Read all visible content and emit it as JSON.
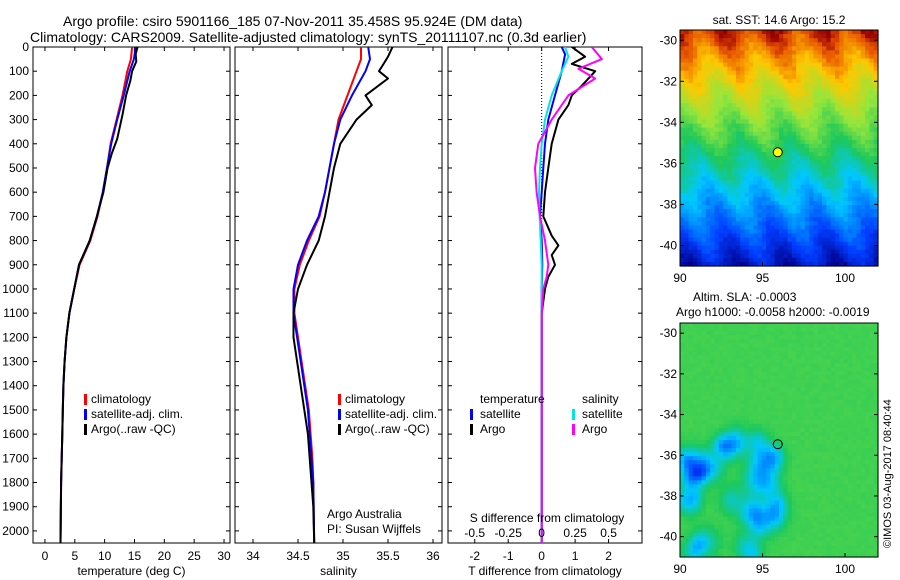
{
  "header": {
    "title_line1": "Argo profile: csiro 5901166_185 07-Nov-2011 35.458S 95.924E (DM data)",
    "title_line2": "Climatology: CARS2009. Satellite-adjusted climatology: synTS_20111107.nc (0.3d earlier)"
  },
  "chart_data": [
    {
      "type": "line",
      "id": "temperature",
      "xlabel": "temperature (deg C)",
      "xlim": [
        -2,
        31
      ],
      "xticks": [
        "0",
        "5",
        "10",
        "15",
        "20",
        "25",
        "30"
      ],
      "ylim": [
        2050,
        0
      ],
      "yticks": [
        "0",
        "100",
        "200",
        "300",
        "400",
        "500",
        "600",
        "700",
        "800",
        "900",
        "1000",
        "1100",
        "1200",
        "1300",
        "1400",
        "1500",
        "1600",
        "1700",
        "1800",
        "1900",
        "2000"
      ],
      "legend": [
        "climatology",
        "satellite-adj. clim.",
        "Argo(..raw -QC)"
      ],
      "series": [
        {
          "name": "climatology",
          "color": "#ff0000",
          "x": [
            14.6,
            14.4,
            13.8,
            13.0,
            12.0,
            11.0,
            10.4,
            9.7,
            8.8,
            7.6,
            5.8,
            4.9,
            4.1,
            3.6,
            3.3,
            3.1,
            3.0,
            2.9,
            2.8,
            2.7,
            2.6
          ],
          "y": [
            0,
            50,
            100,
            200,
            300,
            400,
            500,
            600,
            700,
            800,
            900,
            1000,
            1100,
            1200,
            1300,
            1400,
            1500,
            1600,
            1700,
            1800,
            2050
          ]
        },
        {
          "name": "satellite-adj. clim.",
          "color": "#0000ff",
          "x": [
            15.2,
            14.9,
            14.2,
            13.2,
            12.1,
            11.1,
            10.4,
            9.7,
            8.7,
            7.5,
            5.7,
            4.9,
            4.1,
            3.6,
            3.3,
            3.1,
            3.0,
            2.9,
            2.8,
            2.7,
            2.6
          ],
          "y": [
            0,
            50,
            100,
            200,
            300,
            400,
            500,
            600,
            700,
            800,
            900,
            1000,
            1100,
            1200,
            1300,
            1400,
            1500,
            1600,
            1700,
            1800,
            2050
          ]
        },
        {
          "name": "Argo(..raw -QC)",
          "color": "#000000",
          "x": [
            15.5,
            15.2,
            15.3,
            14.6,
            14.3,
            13.6,
            13.0,
            12.1,
            11.2,
            10.5,
            9.8,
            8.7,
            7.5,
            5.7,
            4.9,
            4.1,
            3.6,
            3.3,
            3.1,
            3.0,
            2.9,
            2.8,
            2.7,
            2.6
          ],
          "y": [
            0,
            30,
            60,
            100,
            140,
            200,
            280,
            380,
            440,
            500,
            600,
            700,
            800,
            900,
            1000,
            1100,
            1200,
            1300,
            1400,
            1500,
            1600,
            1700,
            1800,
            2050
          ]
        }
      ]
    },
    {
      "type": "line",
      "id": "salinity",
      "xlabel": "salinity",
      "xlim": [
        33.8,
        36.1
      ],
      "xticks": [
        "34",
        "34.5",
        "35",
        "35.5",
        "36"
      ],
      "ylim": [
        2050,
        0
      ],
      "legend": [
        "climatology",
        "satellite-adj. clim.",
        "Argo(..raw -QC)"
      ],
      "annotation": [
        "Argo Australia",
        "PI: Susan Wijffels"
      ],
      "series": [
        {
          "name": "climatology",
          "color": "#ff0000",
          "x": [
            35.2,
            35.2,
            35.15,
            35.05,
            34.95,
            34.9,
            34.85,
            34.8,
            34.74,
            34.62,
            34.52,
            34.46,
            34.46,
            34.5,
            34.54,
            34.58,
            34.62,
            34.64,
            34.66,
            34.67,
            34.68
          ],
          "y": [
            0,
            50,
            100,
            200,
            300,
            400,
            500,
            600,
            700,
            800,
            900,
            1000,
            1100,
            1200,
            1300,
            1400,
            1500,
            1600,
            1700,
            1800,
            2050
          ]
        },
        {
          "name": "satellite-adj. clim.",
          "color": "#0000ff",
          "x": [
            35.28,
            35.3,
            35.25,
            35.1,
            34.97,
            34.9,
            34.85,
            34.8,
            34.73,
            34.6,
            34.5,
            34.45,
            34.45,
            34.49,
            34.53,
            34.57,
            34.61,
            34.63,
            34.65,
            34.67,
            34.68
          ],
          "y": [
            0,
            50,
            100,
            200,
            300,
            400,
            500,
            600,
            700,
            800,
            900,
            1000,
            1100,
            1200,
            1300,
            1400,
            1500,
            1600,
            1700,
            1800,
            2050
          ]
        },
        {
          "name": "Argo(..raw -QC)",
          "color": "#000000",
          "x": [
            35.55,
            35.5,
            35.4,
            35.5,
            35.25,
            35.32,
            35.15,
            34.97,
            34.9,
            34.85,
            34.8,
            34.73,
            34.6,
            34.5,
            34.45,
            34.45,
            34.49,
            34.53,
            34.57,
            34.61,
            34.63,
            34.65,
            34.67,
            34.68
          ],
          "y": [
            0,
            40,
            100,
            130,
            200,
            240,
            300,
            400,
            500,
            600,
            700,
            800,
            900,
            1000,
            1100,
            1200,
            1300,
            1400,
            1500,
            1600,
            1700,
            1800,
            1900,
            2050
          ]
        }
      ]
    },
    {
      "type": "line",
      "id": "difference",
      "title": "S difference from climatology",
      "xlabel": "T difference from climatology",
      "xlim": [
        -2.8,
        3.0
      ],
      "xticks": [
        "-2",
        "-1",
        "0",
        "1",
        "2"
      ],
      "top_xticks": [
        "-0.5",
        "-0.25",
        "0",
        "0.25",
        "0.5"
      ],
      "ylim": [
        2050,
        0
      ],
      "legend_groups": [
        {
          "title": "temperature",
          "items": [
            "satellite",
            "Argo"
          ]
        },
        {
          "title": "salinity",
          "items": [
            "satellite",
            "Argo"
          ]
        }
      ],
      "series": [
        {
          "name": "T satellite",
          "color": "#0000ff",
          "x": [
            0.6,
            0.7,
            0.6,
            0.4,
            0.2,
            0.1,
            0.05,
            0.0,
            -0.05,
            0.0,
            0.02,
            0.0,
            0.0,
            0.0,
            0.0,
            0.0,
            0.0,
            0.0,
            0.0,
            0.0
          ],
          "y": [
            0,
            30,
            100,
            200,
            300,
            400,
            500,
            600,
            700,
            800,
            900,
            1000,
            1100,
            1200,
            1300,
            1400,
            1500,
            1600,
            1800,
            2050
          ]
        },
        {
          "name": "T Argo",
          "color": "#000000",
          "x": [
            0.9,
            1.3,
            0.9,
            1.6,
            1.2,
            0.9,
            0.8,
            0.5,
            0.3,
            0.2,
            0.1,
            0.05,
            0.3,
            0.5,
            0.3,
            0.4,
            0.2,
            0.1,
            0.0,
            0.0,
            0.0,
            0.0,
            0.0,
            0.0
          ],
          "y": [
            0,
            40,
            70,
            100,
            160,
            200,
            240,
            300,
            400,
            500,
            600,
            700,
            780,
            820,
            860,
            900,
            950,
            1000,
            1100,
            1200,
            1400,
            1600,
            1800,
            2050
          ]
        },
        {
          "name": "S satellite",
          "color": "#00e5e5",
          "x": [
            0.7,
            0.8,
            0.6,
            0.3,
            0.1,
            0.0,
            -0.05,
            -0.08,
            -0.06,
            -0.03,
            0.0,
            0.0,
            0.0,
            0.0,
            0.0,
            0.0,
            0.0,
            0.0,
            0.0
          ],
          "y": [
            0,
            40,
            100,
            200,
            300,
            400,
            500,
            600,
            700,
            800,
            900,
            1000,
            1100,
            1200,
            1300,
            1400,
            1600,
            1800,
            2050
          ]
        },
        {
          "name": "S Argo",
          "color": "#ff00ff",
          "x": [
            1.5,
            1.8,
            1.1,
            1.6,
            0.8,
            0.3,
            -0.1,
            -0.2,
            -0.15,
            -0.05,
            0.1,
            0.2,
            0.15,
            0.05,
            0.0,
            0.0,
            0.0,
            0.0,
            0.0
          ],
          "y": [
            0,
            50,
            90,
            130,
            200,
            300,
            400,
            500,
            600,
            700,
            800,
            900,
            950,
            1000,
            1100,
            1200,
            1400,
            1700,
            2050
          ]
        }
      ]
    },
    {
      "type": "heatmap",
      "id": "sst_map",
      "title": "sat. SST: 14.6 Argo: 15.2",
      "xlim": [
        90,
        102
      ],
      "ylim": [
        -41,
        -29.5
      ],
      "xticks": [
        "90",
        "95",
        "100"
      ],
      "yticks": [
        "-30",
        "-32",
        "-34",
        "-36",
        "-38",
        "-40"
      ],
      "argo_location": [
        95.924,
        -35.458
      ]
    },
    {
      "type": "heatmap",
      "id": "sla_map",
      "title_line1": "Altim. SLA: -0.0003",
      "title_line2": "Argo h1000: -0.0058 h2000: -0.0019",
      "xlim": [
        90,
        102
      ],
      "ylim": [
        -41,
        -29.5
      ],
      "xticks": [
        "90",
        "95",
        "100"
      ],
      "yticks": [
        "-30",
        "-32",
        "-34",
        "-36",
        "-38",
        "-40"
      ],
      "argo_location": [
        95.924,
        -35.458
      ]
    }
  ],
  "watermark": "©IMOS 03-Aug-2017 08:40:44"
}
